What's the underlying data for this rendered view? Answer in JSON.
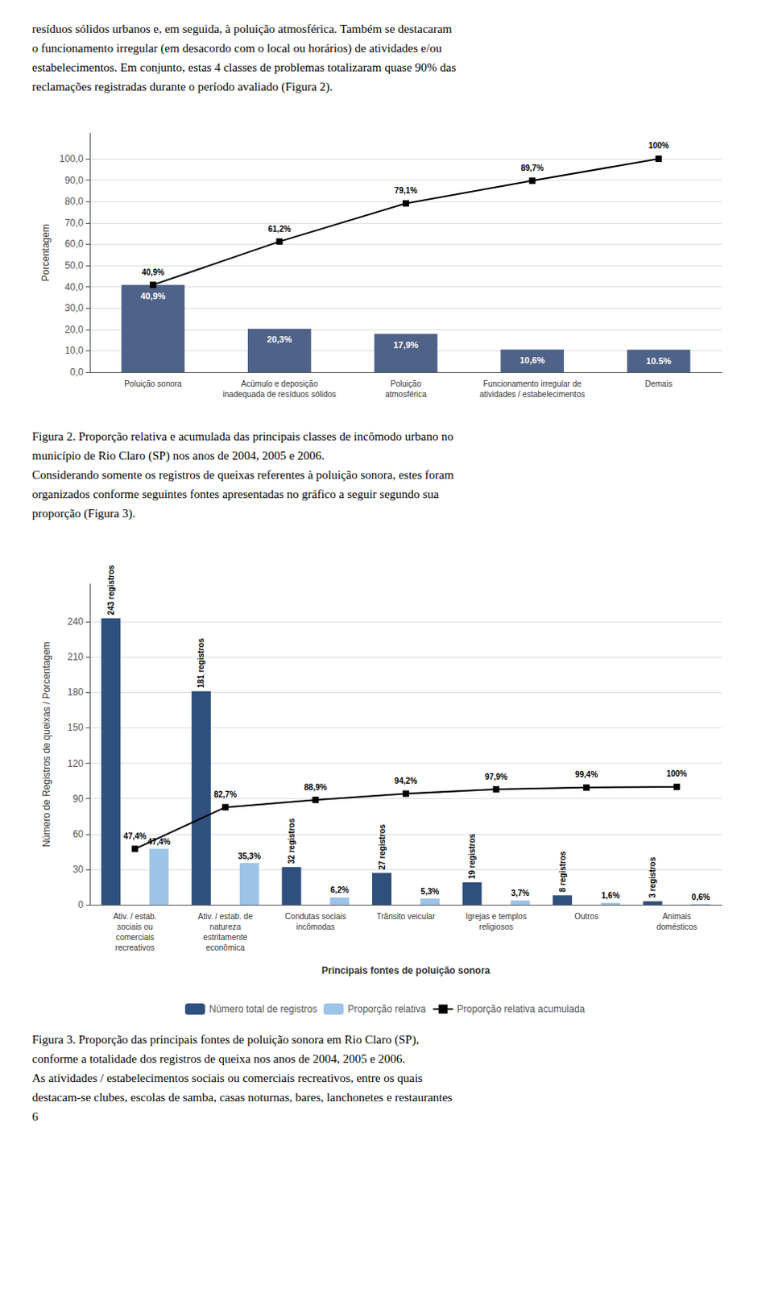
{
  "chart_data": [
    {
      "type": "bar",
      "annotations": {
        "above": [
          "resíduos sólidos urbanos e, em seguida, à poluição atmosférica. Também se destacaram",
          "o funcionamento irregular (em desacordo com o local ou horários) de atividades e/ou",
          "estabelecimentos. Em conjunto, estas 4 classes de problemas totalizaram quase 90% das",
          "reclamações registradas durante o período avaliado (Figura 2)."
        ],
        "below": [
          "Figura 2. Proporção relativa e acumulada das principais classes de incômodo urbano no",
          "município de Rio Claro (SP) nos anos de 2004, 2005 e 2006.",
          "Considerando somente os registros de queixas referentes à poluição sonora, estes foram",
          "organizados conforme seguintes fontes apresentadas no gráfico a seguir segundo sua",
          "proporção (Figura 3)."
        ]
      },
      "categories": [
        "Poluição sonora",
        "Acúmulo e deposição\ninadequada de resíduos sólidos",
        "Poluição\natmosférica",
        "Funcionamento irregular de\natividades / estabelecimentos",
        "Demais"
      ],
      "series": [
        {
          "type": "bar",
          "color": "#4f6288",
          "values": [
            40.9,
            20.3,
            17.9,
            10.6,
            10.5
          ],
          "value_labels": [
            "40,9%",
            "20,3%",
            "17,9%",
            "10,6%",
            "10.5%"
          ]
        },
        {
          "type": "line",
          "color": "#000000",
          "marker": "square",
          "values": [
            40.9,
            61.2,
            79.1,
            89.7,
            100.0
          ],
          "value_labels": [
            "40,9%",
            "61,2%",
            "79,1%",
            "89,7%",
            "100%"
          ]
        }
      ],
      "ylabel": "Porcentagem",
      "ylim": [
        0,
        112
      ],
      "yticks": [
        {
          "value": 0,
          "label": "0,0"
        },
        {
          "value": 10,
          "label": "10,0"
        },
        {
          "value": 20,
          "label": "20,0"
        },
        {
          "value": 30,
          "label": "30,0"
        },
        {
          "value": 40,
          "label": "40,0"
        },
        {
          "value": 50,
          "label": "50,0"
        },
        {
          "value": 60,
          "label": "60,0"
        },
        {
          "value": 70,
          "label": "70,0"
        },
        {
          "value": 80,
          "label": "80,0"
        },
        {
          "value": 90,
          "label": "90,0"
        },
        {
          "value": 100,
          "label": "100,0"
        }
      ],
      "grid": true,
      "data_labels": true
    },
    {
      "type": "bar",
      "annotations": {
        "below": [
          "Figura 3. Proporção das principais fontes de poluição sonora em Rio Claro (SP),",
          "conforme a totalidade dos registros de queixa nos anos de 2004, 2005 e 2006.",
          "As atividades / estabelecimentos sociais ou comerciais recreativos, entre os quais",
          "destacam-se clubes, escolas de samba, casas noturnas, bares, lanchonetes e restaurantes",
          "6"
        ]
      },
      "categories": [
        "Ativ. / estab.\nsociais ou\ncomerciais\nrecreativos",
        "Ativ. / estab. de\nnatureza\nestritamente\neconômica",
        "Condutas sociais\nincômodas",
        "Trânsito veicular",
        "Igrejas e templos\nreligiosos",
        "Outros",
        "Animais\ndomésticos"
      ],
      "series": [
        {
          "name": "Número total de registros",
          "type": "bar",
          "color": "#2f4f7f",
          "values": [
            243,
            181,
            32,
            27,
            19,
            8,
            3
          ],
          "value_labels": [
            "243 registros",
            "181 registros",
            "32 registros",
            "27 registros",
            "19 registros",
            "8 registros",
            "3 registros"
          ]
        },
        {
          "name": "Proporção relativa",
          "type": "bar",
          "color": "#9dc3e6",
          "values": [
            47.4,
            35.3,
            6.2,
            5.3,
            3.7,
            1.6,
            0.6
          ],
          "value_labels": [
            "47,4%",
            "35,3%",
            "6,2%",
            "5,3%",
            "3,7%",
            "1,6%",
            "0,6%"
          ]
        },
        {
          "name": "Proporção relativa acumulada",
          "type": "line",
          "color": "#000000",
          "marker": "square",
          "values": [
            47.4,
            82.7,
            88.9,
            94.2,
            97.9,
            99.4,
            100.0
          ],
          "value_labels": [
            "47,4%",
            "82,7%",
            "88,9%",
            "94,2%",
            "97,9%",
            "99,4%",
            "100%"
          ]
        }
      ],
      "xlabel": "Principais fontes de poluição sonora",
      "ylabel": "Número de Registros de queixas / Porcentagem",
      "ylim": [
        0,
        272
      ],
      "yticks": [
        0,
        30,
        60,
        90,
        120,
        150,
        180,
        210,
        240
      ],
      "grid": true,
      "legend": "bottom",
      "data_labels": true
    }
  ]
}
